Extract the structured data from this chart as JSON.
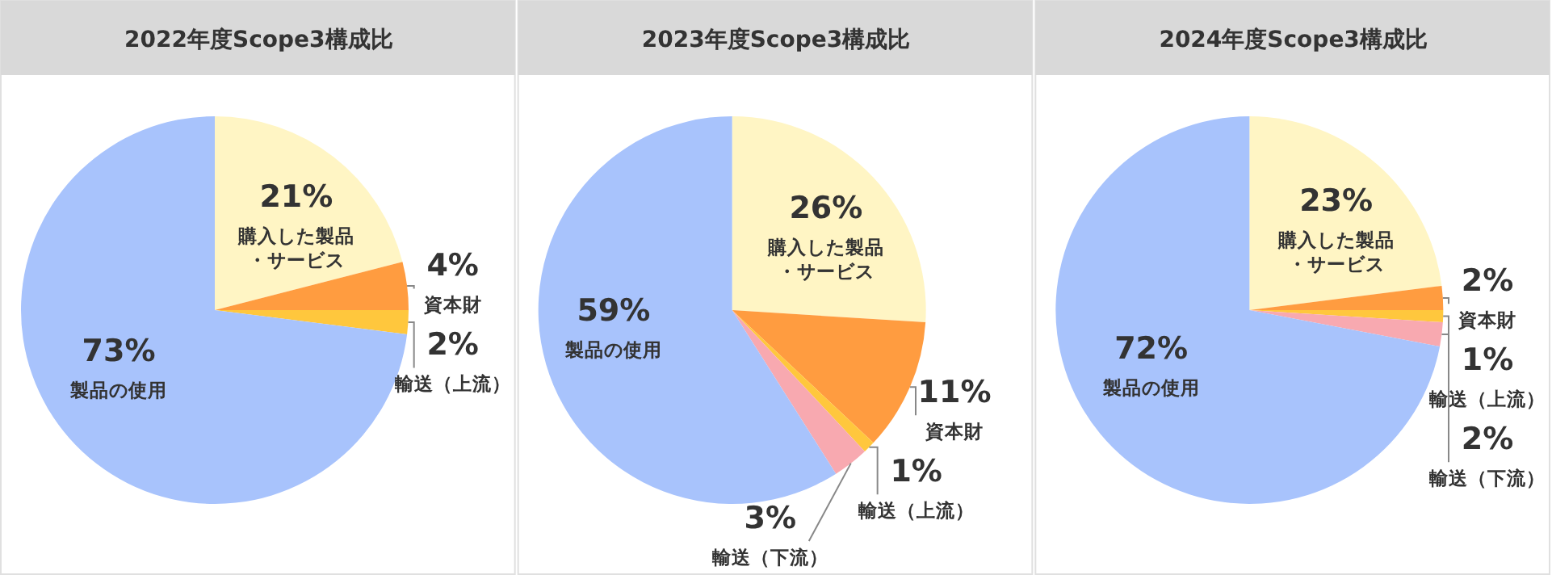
{
  "chart_data": [
    {
      "type": "pie",
      "title": "2022年度Scope3構成比",
      "categories": [
        "購入した製品・サービス",
        "資本財",
        "輸送（上流）",
        "製品の使用"
      ],
      "values": [
        21,
        4,
        2,
        73
      ],
      "colors": [
        "#fff5c4",
        "#ff9c40",
        "#ffc73d",
        "#a8c3fc"
      ],
      "value_labels": [
        "21%",
        "4%",
        "2%",
        "73%"
      ]
    },
    {
      "type": "pie",
      "title": "2023年度Scope3構成比",
      "categories": [
        "購入した製品・サービス",
        "資本財",
        "輸送（上流）",
        "輸送（下流）",
        "製品の使用"
      ],
      "values": [
        26,
        11,
        1,
        3,
        59
      ],
      "colors": [
        "#fff5c4",
        "#ff9c40",
        "#ffc73d",
        "#f8a9b0",
        "#a8c3fc"
      ],
      "value_labels": [
        "26%",
        "11%",
        "1%",
        "3%",
        "59%"
      ]
    },
    {
      "type": "pie",
      "title": "2024年度Scope3構成比",
      "categories": [
        "購入した製品・サービス",
        "資本財",
        "輸送（上流）",
        "輸送（下流）",
        "製品の使用"
      ],
      "values": [
        23,
        2,
        1,
        2,
        72
      ],
      "colors": [
        "#fff5c4",
        "#ff9c40",
        "#ffc73d",
        "#f8a9b0",
        "#a8c3fc"
      ],
      "value_labels": [
        "23%",
        "2%",
        "1%",
        "2%",
        "72%"
      ]
    }
  ]
}
